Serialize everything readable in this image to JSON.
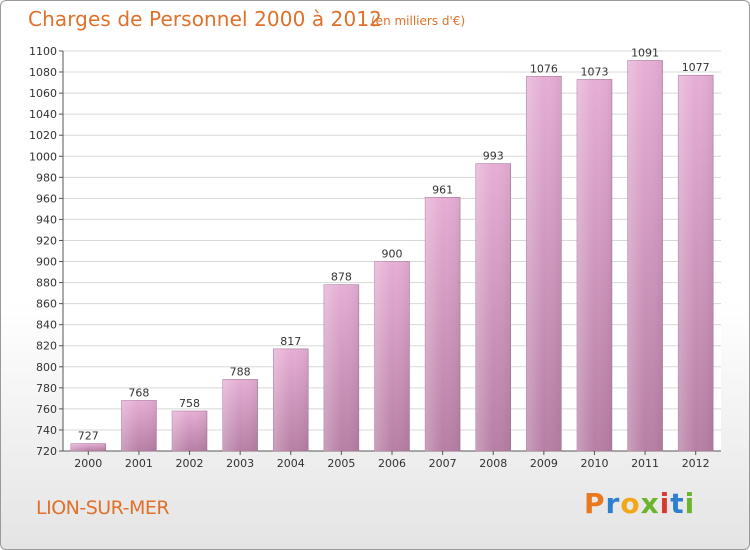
{
  "header": {
    "title": "Charges de Personnel 2000 à 2012",
    "unit": "(en milliers d'€)"
  },
  "footer": {
    "location": "LION-SUR-MER",
    "logo_letters": [
      "P",
      "r",
      "o",
      "x",
      "i",
      "t",
      "i"
    ],
    "logo_colors": [
      "#e8791f",
      "#2f7fd0",
      "#f2a71b",
      "#6bb42d",
      "#d83a2f",
      "#2f7fd0",
      "#6bb42d"
    ]
  },
  "colors": {
    "bar_top": "#e6aed5",
    "bar_bottom": "#b77fa5",
    "title": "#e0702a",
    "grid": "#d8d8d8",
    "axis": "#555555"
  },
  "chart_data": {
    "type": "bar",
    "categories": [
      "2000",
      "2001",
      "2002",
      "2003",
      "2004",
      "2005",
      "2006",
      "2007",
      "2008",
      "2009",
      "2010",
      "2011",
      "2012"
    ],
    "values": [
      727,
      768,
      758,
      788,
      817,
      878,
      900,
      961,
      993,
      1076,
      1073,
      1091,
      1077
    ],
    "ylim": [
      720,
      1100
    ],
    "yticks": [
      720,
      740,
      760,
      780,
      800,
      820,
      840,
      860,
      880,
      900,
      920,
      940,
      960,
      980,
      1000,
      1020,
      1040,
      1060,
      1080,
      1100
    ],
    "grid": true
  }
}
